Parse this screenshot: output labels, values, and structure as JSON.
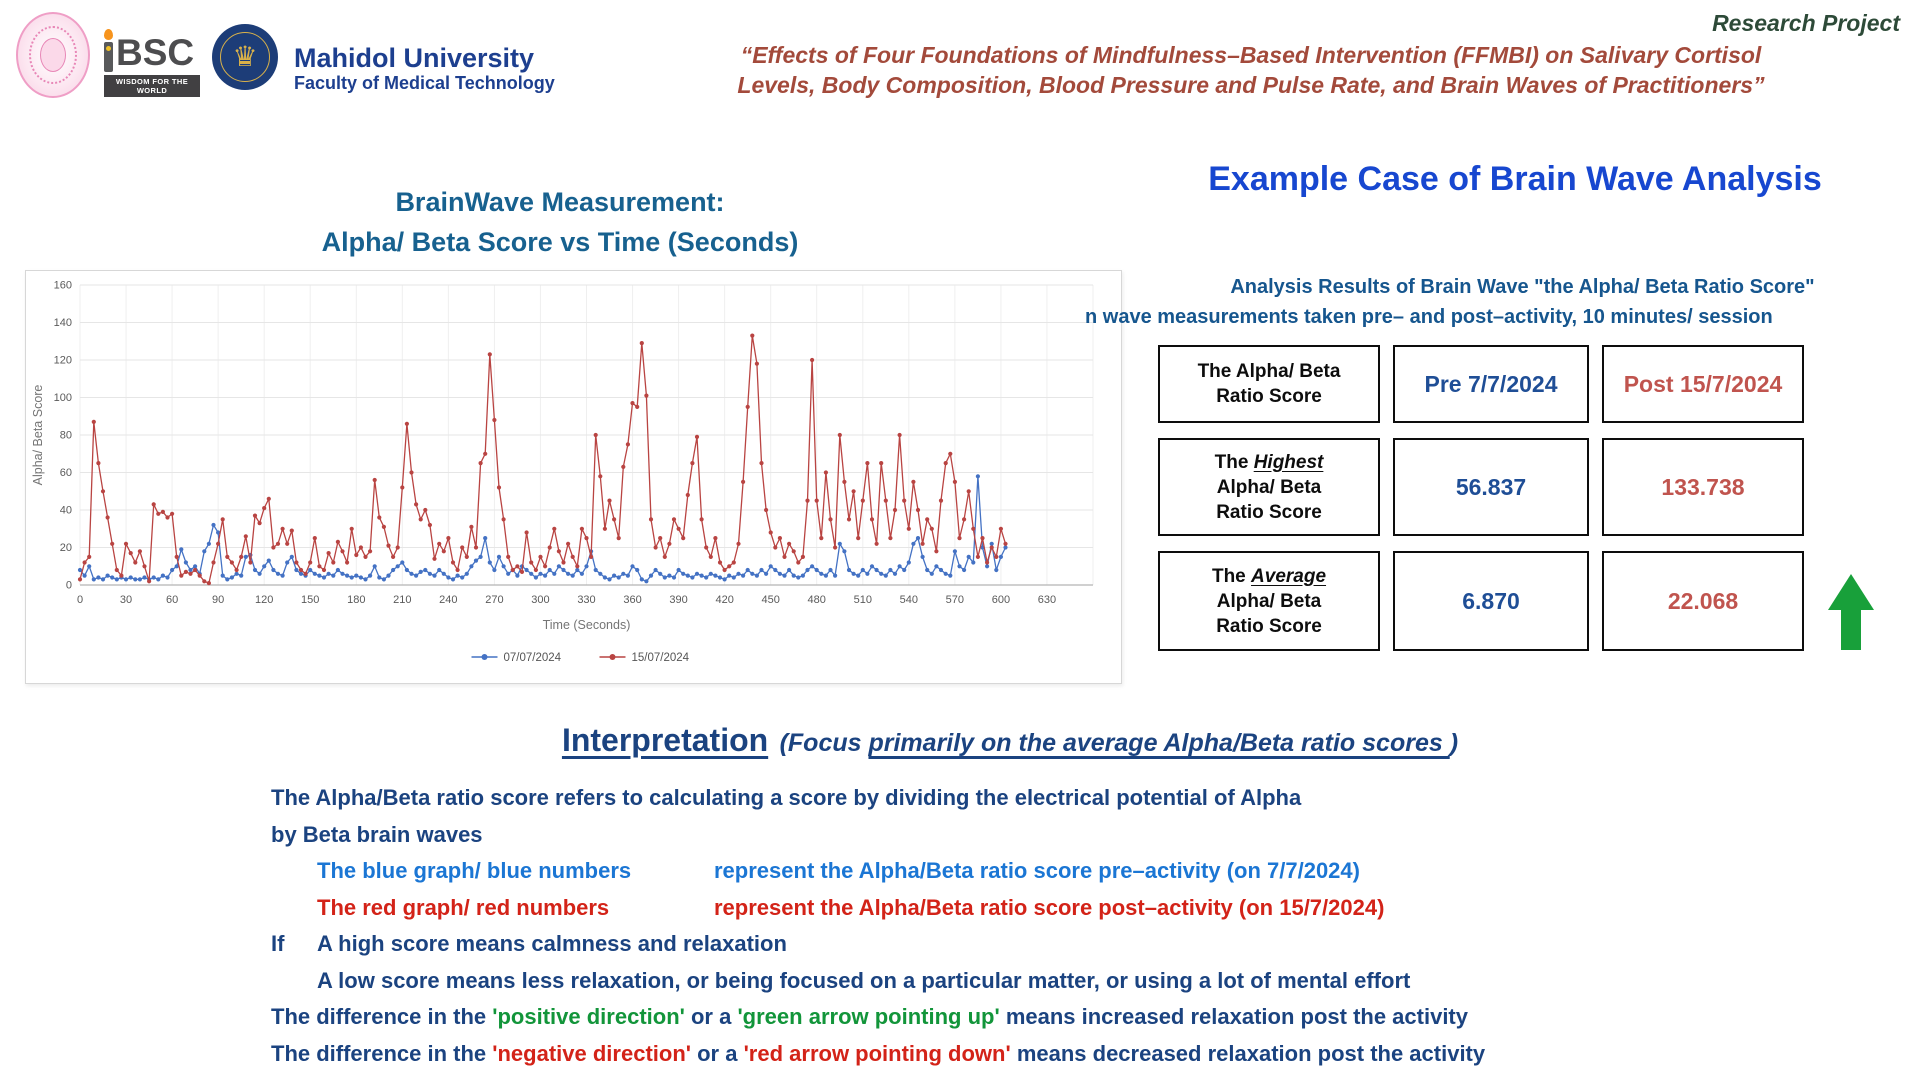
{
  "header": {
    "research_project": "Research Project",
    "quote_line1": "“Effects of Four Foundations of Mindfulness–Based Intervention (FFMBI) on Salivary Cortisol",
    "quote_line2": "Levels, Body Composition, Blood Pressure and Pulse Rate, and Brain Waves of Practitioners”",
    "logos": {
      "ibsc_text": "BSC",
      "ibsc_banner": "WISDOM FOR THE WORLD",
      "university": "Mahidol University",
      "faculty": "Faculty of Medical Technology"
    }
  },
  "chart_section": {
    "title_line1": "BrainWave Measurement:",
    "title_line2": "Alpha/ Beta Score vs Time (Seconds)"
  },
  "example": {
    "heading": "Example Case of Brain Wave Analysis",
    "subtitle_line1": "Analysis Results of Brain Wave \"the Alpha/ Beta Ratio Score\"",
    "subtitle_line2": "n wave measurements taken pre– and post–activity, 10 minutes/ session"
  },
  "table": {
    "header": {
      "label_line1": "The Alpha/ Beta",
      "label_line2": "Ratio Score",
      "pre": "Pre 7/7/2024",
      "post": "Post 15/7/2024"
    },
    "rows": [
      {
        "prefix": "The ",
        "emph": "Highest",
        "line2": "Alpha/ Beta",
        "line3": "Ratio Score",
        "pre": "56.837",
        "post": "133.738"
      },
      {
        "prefix": "The ",
        "emph": "Average",
        "line2": "Alpha/ Beta",
        "line3": "Ratio Score",
        "pre": "6.870",
        "post": "22.068"
      }
    ],
    "arrow_color": "#18a03a"
  },
  "interpretation": {
    "heading": "Interpretation",
    "focus_open": "(Focus ",
    "focus_underline": "primarily on the average Alpha/Beta ratio scores ",
    "focus_close": ")",
    "line1": "The Alpha/Beta ratio score refers to calculating a score by dividing the electrical potential of Alpha",
    "line2": "by Beta brain waves",
    "blue_label": "The blue graph/ blue numbers",
    "blue_rest": "represent the Alpha/Beta ratio score pre–activity (on 7/7/2024)",
    "red_label": "The red graph/ red numbers",
    "red_rest": "represent the Alpha/Beta ratio score post–activity (on 15/7/2024)",
    "if_word": "If",
    "high_line": "A high score means calmness and relaxation",
    "low_line": "A low score  means less relaxation, or being focused on a particular matter, or using a lot of mental effort",
    "pos_pre": "The difference in the ",
    "pos_green1": "'positive direction'",
    "pos_mid": " or a ",
    "pos_green2": "'green arrow pointing up'",
    "pos_post": " means increased relaxation post the activity",
    "neg_pre": "The difference in the ",
    "neg_red1": "'negative direction'",
    "neg_mid": " or a ",
    "neg_red2": "'red arrow pointing down'",
    "neg_post": " means decreased relaxation post the activity"
  },
  "chart_data": {
    "type": "line",
    "title": "BrainWave Measurement: Alpha/ Beta Score vs Time (Seconds)",
    "xlabel": "Time (Seconds)",
    "ylabel": "Alpha/ Beta Score",
    "xlim": [
      0,
      660
    ],
    "ylim": [
      0,
      160
    ],
    "xtick_step": 30,
    "xtick_max": 630,
    "ytick_step": 20,
    "grid": true,
    "legend_position": "bottom",
    "x_start": 0,
    "x_step": 3,
    "series": [
      {
        "name": "07/07/2024",
        "color": "#4472c4",
        "values": [
          8,
          5,
          10,
          3,
          4,
          3,
          5,
          4,
          3,
          4,
          3,
          4,
          3,
          3,
          4,
          3,
          4,
          3,
          5,
          4,
          8,
          10,
          19,
          12,
          8,
          10,
          6,
          18,
          22,
          32,
          28,
          5,
          3,
          4,
          6,
          5,
          15,
          16,
          8,
          6,
          10,
          13,
          8,
          6,
          5,
          12,
          15,
          8,
          6,
          5,
          8,
          6,
          5,
          4,
          6,
          5,
          8,
          6,
          5,
          4,
          5,
          4,
          3,
          5,
          10,
          4,
          3,
          5,
          8,
          10,
          12,
          8,
          6,
          5,
          7,
          8,
          6,
          5,
          8,
          6,
          4,
          3,
          5,
          4,
          6,
          10,
          13,
          15,
          25,
          12,
          8,
          15,
          10,
          6,
          8,
          5,
          10,
          8,
          6,
          4,
          6,
          5,
          8,
          6,
          10,
          8,
          6,
          5,
          8,
          6,
          10,
          18,
          8,
          6,
          4,
          3,
          5,
          4,
          6,
          5,
          10,
          8,
          3,
          2,
          5,
          8,
          6,
          4,
          5,
          4,
          8,
          6,
          5,
          4,
          6,
          5,
          4,
          6,
          5,
          4,
          3,
          5,
          4,
          6,
          5,
          8,
          6,
          5,
          8,
          6,
          10,
          8,
          6,
          5,
          8,
          5,
          4,
          5,
          8,
          10,
          8,
          6,
          5,
          8,
          5,
          22,
          18,
          8,
          6,
          5,
          8,
          6,
          10,
          8,
          6,
          5,
          8,
          6,
          10,
          8,
          12,
          22,
          25,
          15,
          8,
          6,
          10,
          8,
          6,
          5,
          18,
          10,
          8,
          15,
          12,
          58,
          20,
          10,
          22,
          8,
          15,
          20
        ]
      },
      {
        "name": "15/07/2024",
        "color": "#b94442",
        "values": [
          3,
          12,
          15,
          87,
          65,
          50,
          36,
          22,
          8,
          5,
          22,
          17,
          12,
          18,
          10,
          2,
          43,
          38,
          39,
          36,
          38,
          15,
          5,
          7,
          6,
          8,
          5,
          2,
          1,
          12,
          22,
          35,
          15,
          12,
          8,
          15,
          26,
          12,
          37,
          33,
          41,
          46,
          20,
          22,
          30,
          22,
          29,
          12,
          8,
          6,
          12,
          25,
          10,
          8,
          17,
          12,
          23,
          18,
          12,
          30,
          16,
          20,
          15,
          18,
          56,
          36,
          31,
          21,
          15,
          20,
          52,
          86,
          60,
          43,
          35,
          40,
          32,
          14,
          22,
          18,
          25,
          12,
          8,
          20,
          15,
          31,
          20,
          65,
          70,
          123,
          88,
          52,
          35,
          15,
          8,
          10,
          7,
          28,
          12,
          8,
          15,
          10,
          20,
          30,
          18,
          12,
          22,
          15,
          10,
          30,
          25,
          15,
          80,
          58,
          30,
          45,
          35,
          25,
          63,
          75,
          97,
          95,
          129,
          101,
          35,
          20,
          25,
          15,
          22,
          35,
          30,
          25,
          48,
          65,
          79,
          35,
          20,
          15,
          25,
          12,
          8,
          10,
          12,
          22,
          55,
          95,
          133,
          118,
          65,
          40,
          28,
          20,
          25,
          15,
          22,
          18,
          12,
          15,
          45,
          120,
          45,
          25,
          60,
          35,
          20,
          80,
          55,
          35,
          50,
          25,
          45,
          65,
          35,
          22,
          65,
          45,
          25,
          40,
          80,
          45,
          30,
          55,
          40,
          22,
          35,
          30,
          18,
          45,
          65,
          70,
          55,
          25,
          35,
          50,
          30,
          15,
          25,
          12,
          20,
          15,
          30,
          22
        ]
      }
    ]
  }
}
